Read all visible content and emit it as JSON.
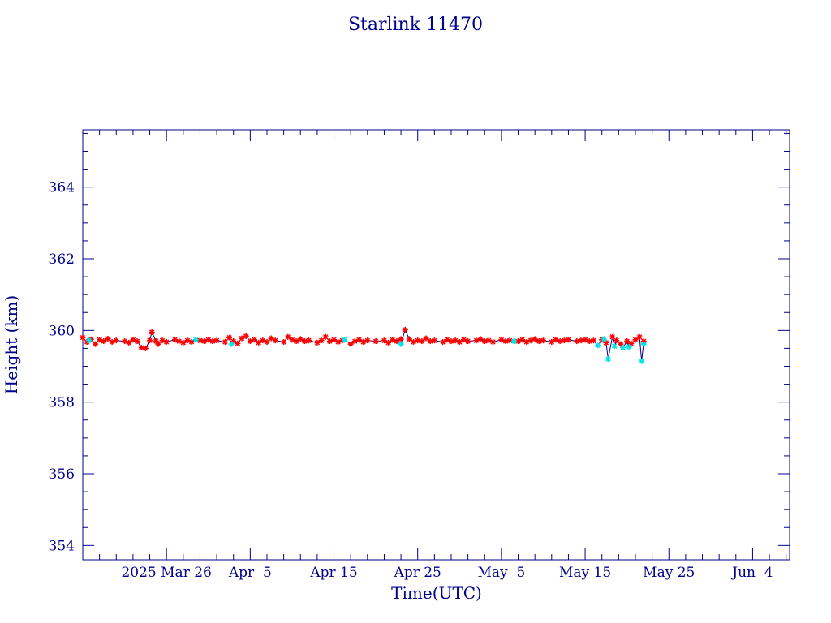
{
  "colors": {
    "axis": "#00008b",
    "line": "#00008b",
    "marker_red": "#ff0000",
    "marker_cyan": "#00e5e5",
    "background": "#ffffff"
  },
  "chart_data": {
    "type": "line",
    "title": "Starlink 11470",
    "xlabel": "Time(UTC)",
    "ylabel": "Height (km)",
    "ylim": [
      353.6,
      365.6
    ],
    "xlim": [
      "2025-03-16T00:00",
      "2025-06-08T10:00"
    ],
    "grid": false,
    "yticks": [
      {
        "value": 354,
        "label": "354"
      },
      {
        "value": 356,
        "label": "356"
      },
      {
        "value": 358,
        "label": "358"
      },
      {
        "value": 360,
        "label": "360"
      },
      {
        "value": 362,
        "label": "362"
      },
      {
        "value": 364,
        "label": "364"
      }
    ],
    "xticks": [
      {
        "date": "2025-03-26",
        "label": "2025 Mar 26"
      },
      {
        "date": "2025-04-05",
        "label": "Apr  5"
      },
      {
        "date": "2025-04-15",
        "label": "Apr 15"
      },
      {
        "date": "2025-04-25",
        "label": "Apr 25"
      },
      {
        "date": "2025-05-05",
        "label": "May  5"
      },
      {
        "date": "2025-05-15",
        "label": "May 15"
      },
      {
        "date": "2025-05-25",
        "label": "May 25"
      },
      {
        "date": "2025-06-04",
        "label": "Jun  4"
      }
    ],
    "series": [
      {
        "marker_color": "#ff0000",
        "points": [
          [
            "2025-03-16T00:00",
            359.8
          ],
          [
            "2025-03-16T12:00",
            359.68
          ],
          [
            "2025-03-17T00:00",
            359.75
          ],
          [
            "2025-03-17T12:00",
            359.62
          ],
          [
            "2025-03-18T00:00",
            359.74
          ],
          [
            "2025-03-18T12:00",
            359.7
          ],
          [
            "2025-03-19T00:00",
            359.77
          ],
          [
            "2025-03-19T12:00",
            359.68
          ],
          [
            "2025-03-20T00:00",
            359.72
          ],
          [
            "2025-03-21T00:00",
            359.7
          ],
          [
            "2025-03-21T12:00",
            359.66
          ],
          [
            "2025-03-22T00:00",
            359.74
          ],
          [
            "2025-03-22T12:00",
            359.7
          ],
          [
            "2025-03-23T00:00",
            359.52
          ],
          [
            "2025-03-23T12:00",
            359.5
          ],
          [
            "2025-03-24T00:00",
            359.72
          ],
          [
            "2025-03-24T06:00",
            359.95
          ],
          [
            "2025-03-24T18:00",
            359.7
          ],
          [
            "2025-03-25T00:00",
            359.62
          ],
          [
            "2025-03-25T12:00",
            359.72
          ],
          [
            "2025-03-26T00:00",
            359.68
          ],
          [
            "2025-03-27T00:00",
            359.74
          ],
          [
            "2025-03-27T12:00",
            359.7
          ],
          [
            "2025-03-28T00:00",
            359.66
          ],
          [
            "2025-03-28T12:00",
            359.72
          ],
          [
            "2025-03-29T00:00",
            359.68
          ],
          [
            "2025-03-30T00:00",
            359.72
          ],
          [
            "2025-03-30T12:00",
            359.7
          ],
          [
            "2025-03-31T00:00",
            359.74
          ],
          [
            "2025-03-31T12:00",
            359.7
          ],
          [
            "2025-04-01T00:00",
            359.72
          ],
          [
            "2025-04-02T00:00",
            359.68
          ],
          [
            "2025-04-02T12:00",
            359.8
          ],
          [
            "2025-04-03T00:00",
            359.7
          ],
          [
            "2025-04-03T12:00",
            359.64
          ],
          [
            "2025-04-04T00:00",
            359.78
          ],
          [
            "2025-04-04T12:00",
            359.84
          ],
          [
            "2025-04-05T00:00",
            359.7
          ],
          [
            "2025-04-05T12:00",
            359.74
          ],
          [
            "2025-04-06T00:00",
            359.66
          ],
          [
            "2025-04-06T12:00",
            359.72
          ],
          [
            "2025-04-07T00:00",
            359.68
          ],
          [
            "2025-04-07T12:00",
            359.78
          ],
          [
            "2025-04-08T00:00",
            359.72
          ],
          [
            "2025-04-09T00:00",
            359.68
          ],
          [
            "2025-04-09T12:00",
            359.82
          ],
          [
            "2025-04-10T00:00",
            359.74
          ],
          [
            "2025-04-10T12:00",
            359.7
          ],
          [
            "2025-04-11T00:00",
            359.76
          ],
          [
            "2025-04-11T12:00",
            359.7
          ],
          [
            "2025-04-12T00:00",
            359.72
          ],
          [
            "2025-04-13T00:00",
            359.66
          ],
          [
            "2025-04-13T12:00",
            359.72
          ],
          [
            "2025-04-14T00:00",
            359.82
          ],
          [
            "2025-04-14T12:00",
            359.7
          ],
          [
            "2025-04-15T00:00",
            359.74
          ],
          [
            "2025-04-15T12:00",
            359.68
          ],
          [
            "2025-04-16T00:00",
            359.72
          ],
          [
            "2025-04-17T00:00",
            359.62
          ],
          [
            "2025-04-17T12:00",
            359.7
          ],
          [
            "2025-04-18T00:00",
            359.74
          ],
          [
            "2025-04-18T12:00",
            359.68
          ],
          [
            "2025-04-19T00:00",
            359.72
          ],
          [
            "2025-04-20T00:00",
            359.7
          ],
          [
            "2025-04-21T00:00",
            359.72
          ],
          [
            "2025-04-21T12:00",
            359.66
          ],
          [
            "2025-04-22T00:00",
            359.74
          ],
          [
            "2025-04-22T12:00",
            359.7
          ],
          [
            "2025-04-23T00:00",
            359.76
          ],
          [
            "2025-04-23T12:00",
            360.02
          ],
          [
            "2025-04-24T00:00",
            359.76
          ],
          [
            "2025-04-24T12:00",
            359.68
          ],
          [
            "2025-04-25T00:00",
            359.72
          ],
          [
            "2025-04-25T12:00",
            359.7
          ],
          [
            "2025-04-26T00:00",
            359.78
          ],
          [
            "2025-04-26T12:00",
            359.7
          ],
          [
            "2025-04-27T00:00",
            359.72
          ],
          [
            "2025-04-28T00:00",
            359.68
          ],
          [
            "2025-04-28T12:00",
            359.74
          ],
          [
            "2025-04-29T00:00",
            359.7
          ],
          [
            "2025-04-29T12:00",
            359.72
          ],
          [
            "2025-04-30T00:00",
            359.68
          ],
          [
            "2025-04-30T12:00",
            359.74
          ],
          [
            "2025-05-01T00:00",
            359.7
          ],
          [
            "2025-05-02T00:00",
            359.72
          ],
          [
            "2025-05-02T12:00",
            359.76
          ],
          [
            "2025-05-03T00:00",
            359.7
          ],
          [
            "2025-05-03T12:00",
            359.72
          ],
          [
            "2025-05-04T00:00",
            359.68
          ],
          [
            "2025-05-05T00:00",
            359.74
          ],
          [
            "2025-05-05T12:00",
            359.7
          ],
          [
            "2025-05-06T00:00",
            359.72
          ],
          [
            "2025-05-07T00:00",
            359.7
          ],
          [
            "2025-05-07T12:00",
            359.74
          ],
          [
            "2025-05-08T00:00",
            359.68
          ],
          [
            "2025-05-08T12:00",
            359.72
          ],
          [
            "2025-05-09T00:00",
            359.76
          ],
          [
            "2025-05-09T12:00",
            359.7
          ],
          [
            "2025-05-10T00:00",
            359.72
          ],
          [
            "2025-05-11T00:00",
            359.68
          ],
          [
            "2025-05-11T12:00",
            359.74
          ],
          [
            "2025-05-12T00:00",
            359.7
          ],
          [
            "2025-05-12T12:00",
            359.72
          ],
          [
            "2025-05-13T00:00",
            359.74
          ],
          [
            "2025-05-14T00:00",
            359.7
          ],
          [
            "2025-05-14T12:00",
            359.72
          ],
          [
            "2025-05-15T00:00",
            359.74
          ],
          [
            "2025-05-15T12:00",
            359.7
          ],
          [
            "2025-05-16T00:00",
            359.72
          ],
          [
            "2025-05-17T00:00",
            359.74
          ],
          [
            "2025-05-17T12:00",
            359.66
          ],
          [
            "2025-05-18T06:00",
            359.82
          ],
          [
            "2025-05-18T18:00",
            359.72
          ],
          [
            "2025-05-19T06:00",
            359.62
          ],
          [
            "2025-05-20T00:00",
            359.7
          ],
          [
            "2025-05-20T12:00",
            359.64
          ],
          [
            "2025-05-21T00:00",
            359.74
          ],
          [
            "2025-05-21T12:00",
            359.82
          ],
          [
            "2025-05-22T00:00",
            359.7
          ]
        ]
      },
      {
        "marker_color": "#00e5e5",
        "points": [
          [
            "2025-03-16T18:00",
            359.72
          ],
          [
            "2025-03-29T12:00",
            359.74
          ],
          [
            "2025-04-02T18:00",
            359.62
          ],
          [
            "2025-04-16T06:00",
            359.74
          ],
          [
            "2025-04-23T00:00",
            359.62
          ],
          [
            "2025-05-06T12:00",
            359.7
          ],
          [
            "2025-05-16T12:00",
            359.58
          ],
          [
            "2025-05-17T06:00",
            359.76
          ],
          [
            "2025-05-17T18:00",
            359.2
          ],
          [
            "2025-05-18T12:00",
            359.56
          ],
          [
            "2025-05-19T12:00",
            359.52
          ],
          [
            "2025-05-20T06:00",
            359.54
          ],
          [
            "2025-05-21T18:00",
            359.14
          ],
          [
            "2025-05-22T00:00",
            359.62
          ]
        ]
      }
    ]
  }
}
